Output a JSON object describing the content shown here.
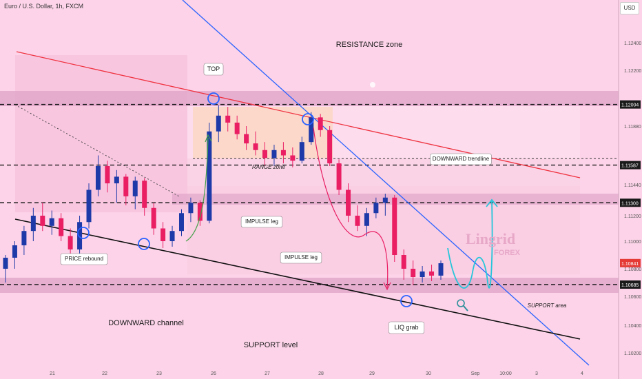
{
  "header": {
    "title": "Euro / U.S. Dollar, 1h, FXCM",
    "currency": "USD"
  },
  "chart_data": {
    "type": "candlestick",
    "symbol": "EURUSD",
    "timeframe": "1h",
    "y_axis": {
      "ticks": [
        1.124,
        1.122,
        1.1188,
        1.1144,
        1.112,
        1.11,
        1.108,
        1.106,
        1.104,
        1.102
      ],
      "tick_labels": [
        "1.12400",
        "1.12200",
        "1.11880",
        "1.11440",
        "1.11200",
        "1.11000",
        "1.10800",
        "1.10600",
        "1.10400",
        "1.10200"
      ],
      "price_badges": [
        {
          "label": "1.12004",
          "value": 1.12004,
          "style": "dark"
        },
        {
          "label": "1.11587",
          "value": 1.11587,
          "style": "dark"
        },
        {
          "label": "1.11300",
          "value": 1.113,
          "style": "dark"
        },
        {
          "label": "1.10841",
          "value": 1.10841,
          "style": "red"
        },
        {
          "label": "1.10685",
          "value": 1.10685,
          "style": "dark"
        }
      ]
    },
    "x_axis": {
      "tick_labels": [
        "21",
        "22",
        "23",
        "26",
        "27",
        "28",
        "29",
        "30",
        "Sep",
        "10:00",
        "3",
        "4"
      ]
    },
    "horizontal_levels": [
      1.12004,
      1.11587,
      1.113,
      1.10685
    ],
    "candles": [
      {
        "o": 1.108,
        "h": 1.109,
        "l": 1.107,
        "c": 1.1088
      },
      {
        "o": 1.1088,
        "h": 1.11,
        "l": 1.108,
        "c": 1.1097
      },
      {
        "o": 1.1097,
        "h": 1.1112,
        "l": 1.109,
        "c": 1.1108
      },
      {
        "o": 1.1108,
        "h": 1.1126,
        "l": 1.11,
        "c": 1.112
      },
      {
        "o": 1.112,
        "h": 1.113,
        "l": 1.1108,
        "c": 1.1112
      },
      {
        "o": 1.1112,
        "h": 1.1124,
        "l": 1.1105,
        "c": 1.1118
      },
      {
        "o": 1.1118,
        "h": 1.1122,
        "l": 1.11,
        "c": 1.1104
      },
      {
        "o": 1.1104,
        "h": 1.111,
        "l": 1.1088,
        "c": 1.1094
      },
      {
        "o": 1.1094,
        "h": 1.112,
        "l": 1.109,
        "c": 1.1115
      },
      {
        "o": 1.1115,
        "h": 1.1145,
        "l": 1.111,
        "c": 1.114
      },
      {
        "o": 1.114,
        "h": 1.1166,
        "l": 1.1135,
        "c": 1.1158
      },
      {
        "o": 1.1158,
        "h": 1.1162,
        "l": 1.1138,
        "c": 1.1145
      },
      {
        "o": 1.1145,
        "h": 1.1155,
        "l": 1.113,
        "c": 1.115
      },
      {
        "o": 1.115,
        "h": 1.1152,
        "l": 1.1128,
        "c": 1.1135
      },
      {
        "o": 1.1135,
        "h": 1.115,
        "l": 1.1125,
        "c": 1.1147
      },
      {
        "o": 1.1147,
        "h": 1.1149,
        "l": 1.112,
        "c": 1.1126
      },
      {
        "o": 1.1126,
        "h": 1.113,
        "l": 1.1105,
        "c": 1.111
      },
      {
        "o": 1.111,
        "h": 1.1115,
        "l": 1.1095,
        "c": 1.11
      },
      {
        "o": 1.11,
        "h": 1.1112,
        "l": 1.1096,
        "c": 1.1108
      },
      {
        "o": 1.1108,
        "h": 1.1125,
        "l": 1.1104,
        "c": 1.1122
      },
      {
        "o": 1.1122,
        "h": 1.1134,
        "l": 1.1115,
        "c": 1.113
      },
      {
        "o": 1.113,
        "h": 1.1132,
        "l": 1.1112,
        "c": 1.1116
      },
      {
        "o": 1.1116,
        "h": 1.119,
        "l": 1.1114,
        "c": 1.1184
      },
      {
        "o": 1.1184,
        "h": 1.12,
        "l": 1.1176,
        "c": 1.1194
      },
      {
        "o": 1.1194,
        "h": 1.1199,
        "l": 1.1184,
        "c": 1.119
      },
      {
        "o": 1.119,
        "h": 1.1194,
        "l": 1.1178,
        "c": 1.1182
      },
      {
        "o": 1.1182,
        "h": 1.1188,
        "l": 1.117,
        "c": 1.1175
      },
      {
        "o": 1.1175,
        "h": 1.1184,
        "l": 1.1166,
        "c": 1.117
      },
      {
        "o": 1.117,
        "h": 1.1176,
        "l": 1.1158,
        "c": 1.1164
      },
      {
        "o": 1.1164,
        "h": 1.1174,
        "l": 1.1158,
        "c": 1.117
      },
      {
        "o": 1.117,
        "h": 1.1176,
        "l": 1.116,
        "c": 1.1166
      },
      {
        "o": 1.1166,
        "h": 1.1172,
        "l": 1.1157,
        "c": 1.1162
      },
      {
        "o": 1.1162,
        "h": 1.118,
        "l": 1.116,
        "c": 1.1176
      },
      {
        "o": 1.1176,
        "h": 1.1196,
        "l": 1.1174,
        "c": 1.1193
      },
      {
        "o": 1.1193,
        "h": 1.1195,
        "l": 1.118,
        "c": 1.1185
      },
      {
        "o": 1.1185,
        "h": 1.1188,
        "l": 1.1158,
        "c": 1.116
      },
      {
        "o": 1.116,
        "h": 1.1163,
        "l": 1.1136,
        "c": 1.114
      },
      {
        "o": 1.114,
        "h": 1.1145,
        "l": 1.1115,
        "c": 1.112
      },
      {
        "o": 1.112,
        "h": 1.1128,
        "l": 1.1108,
        "c": 1.1112
      },
      {
        "o": 1.1112,
        "h": 1.1126,
        "l": 1.1104,
        "c": 1.1122
      },
      {
        "o": 1.1122,
        "h": 1.1134,
        "l": 1.1118,
        "c": 1.113
      },
      {
        "o": 1.113,
        "h": 1.1137,
        "l": 1.112,
        "c": 1.1134
      },
      {
        "o": 1.1134,
        "h": 1.1136,
        "l": 1.1085,
        "c": 1.109
      },
      {
        "o": 1.109,
        "h": 1.1094,
        "l": 1.1072,
        "c": 1.108
      },
      {
        "o": 1.108,
        "h": 1.1086,
        "l": 1.1068,
        "c": 1.1074
      },
      {
        "o": 1.1074,
        "h": 1.1082,
        "l": 1.107,
        "c": 1.1078
      },
      {
        "o": 1.1078,
        "h": 1.1083,
        "l": 1.1071,
        "c": 1.1075
      },
      {
        "o": 1.1075,
        "h": 1.1086,
        "l": 1.1072,
        "c": 1.1084
      }
    ],
    "annotations": [
      {
        "text": "RESISTANCE zone",
        "kind": "plain"
      },
      {
        "text": "TOP",
        "kind": "box"
      },
      {
        "text": "RANGE zone",
        "kind": "italic"
      },
      {
        "text": "DOWNWARD trendline",
        "kind": "box"
      },
      {
        "text": "IMPULSE leg",
        "kind": "box"
      },
      {
        "text": "IMPULSE leg",
        "kind": "box"
      },
      {
        "text": "PRICE rebound",
        "kind": "box"
      },
      {
        "text": "DOWNWARD channel",
        "kind": "plain"
      },
      {
        "text": "SUPPORT level",
        "kind": "plain"
      },
      {
        "text": "SUPPORT area",
        "kind": "italic"
      },
      {
        "text": "LIQ grab",
        "kind": "box"
      }
    ],
    "watermark": "Lingrid FOREX",
    "colors": {
      "background": "#fcd3e8",
      "bull_candle": "#1e3aa8",
      "bear_candle": "#e91e63",
      "trendline_red": "#ef3340",
      "trendline_blue": "#2962ff",
      "channel_black": "#111111",
      "projection": "#26c6da",
      "zone_band": "#dfa3c8"
    }
  }
}
